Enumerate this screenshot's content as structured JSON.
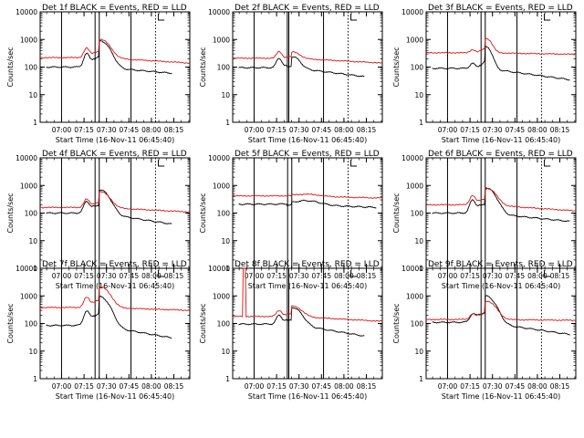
{
  "colors": {
    "events": "#000000",
    "lld": "#e01010",
    "axes": "#000000",
    "background": "#ffffff"
  },
  "shared": {
    "ylabel": "Counts/sec",
    "xlabel": "Start Time (16-Nov-11 06:45:40)",
    "yticks": [
      "1",
      "10",
      "100",
      "1000",
      "10000"
    ],
    "xticks": [
      "07:00",
      "07:15",
      "07:30",
      "07:45",
      "08:00",
      "08:15"
    ]
  },
  "chart_data": [
    {
      "type": "line",
      "title": "Det 1f BLACK = Events, RED = LLD",
      "x_unit": "minutes after 06:45:40",
      "xlim": [
        0,
        100
      ],
      "ylim": [
        1,
        10000
      ],
      "ylog": true,
      "solid_markers": [
        14.3,
        36.7,
        39.5,
        60.7
      ],
      "dotted_markers": [
        77.1
      ],
      "series": [
        {
          "name": "Events",
          "color": "#000000",
          "x": [
            0,
            1,
            2,
            3,
            4,
            5,
            6,
            7,
            8,
            9,
            10,
            11,
            12,
            13,
            14,
            15,
            16,
            17,
            18,
            19,
            20,
            21,
            22,
            23,
            24,
            25,
            26,
            27,
            28,
            29,
            30,
            31,
            32,
            33,
            34,
            35,
            36,
            37,
            38,
            39,
            40,
            41,
            42,
            43,
            44,
            45,
            46,
            47,
            48,
            49,
            50,
            51,
            52,
            53,
            54,
            55,
            56,
            57,
            58,
            59,
            60,
            61,
            62,
            63,
            64,
            65,
            66,
            67,
            68,
            69,
            70,
            71,
            72,
            73,
            74,
            75,
            76,
            77,
            78,
            79,
            80,
            81,
            82,
            83,
            84,
            85,
            86,
            87,
            88,
            89,
            90,
            91,
            92,
            93,
            94,
            95,
            96,
            97,
            98,
            99,
            100
          ],
          "y": [
            null,
            null,
            null,
            null,
            null,
            null,
            null,
            null,
            null,
            null,
            null,
            null,
            null,
            null,
            null,
            null,
            null,
            null,
            null,
            null,
            null,
            null,
            null,
            null,
            null,
            null,
            null,
            null,
            null,
            null,
            null,
            null,
            null,
            null,
            null,
            null,
            null,
            null,
            null,
            null,
            null,
            null,
            null,
            null,
            null,
            null,
            null,
            null,
            null,
            null,
            null,
            null,
            null,
            null,
            null,
            null,
            null,
            null,
            null,
            null,
            null,
            null,
            null,
            null,
            null,
            null,
            null,
            null,
            null,
            null,
            null,
            null,
            null,
            null,
            null,
            null,
            null,
            null,
            null,
            null,
            null,
            null,
            null,
            null,
            null,
            null,
            null,
            null,
            null,
            null,
            null,
            null,
            null,
            null,
            null,
            null,
            null,
            null,
            null,
            null,
            null
          ]
        },
        {
          "name": "LLD",
          "color": "#e01010",
          "x": [],
          "y": []
        }
      ]
    }
  ]
}
